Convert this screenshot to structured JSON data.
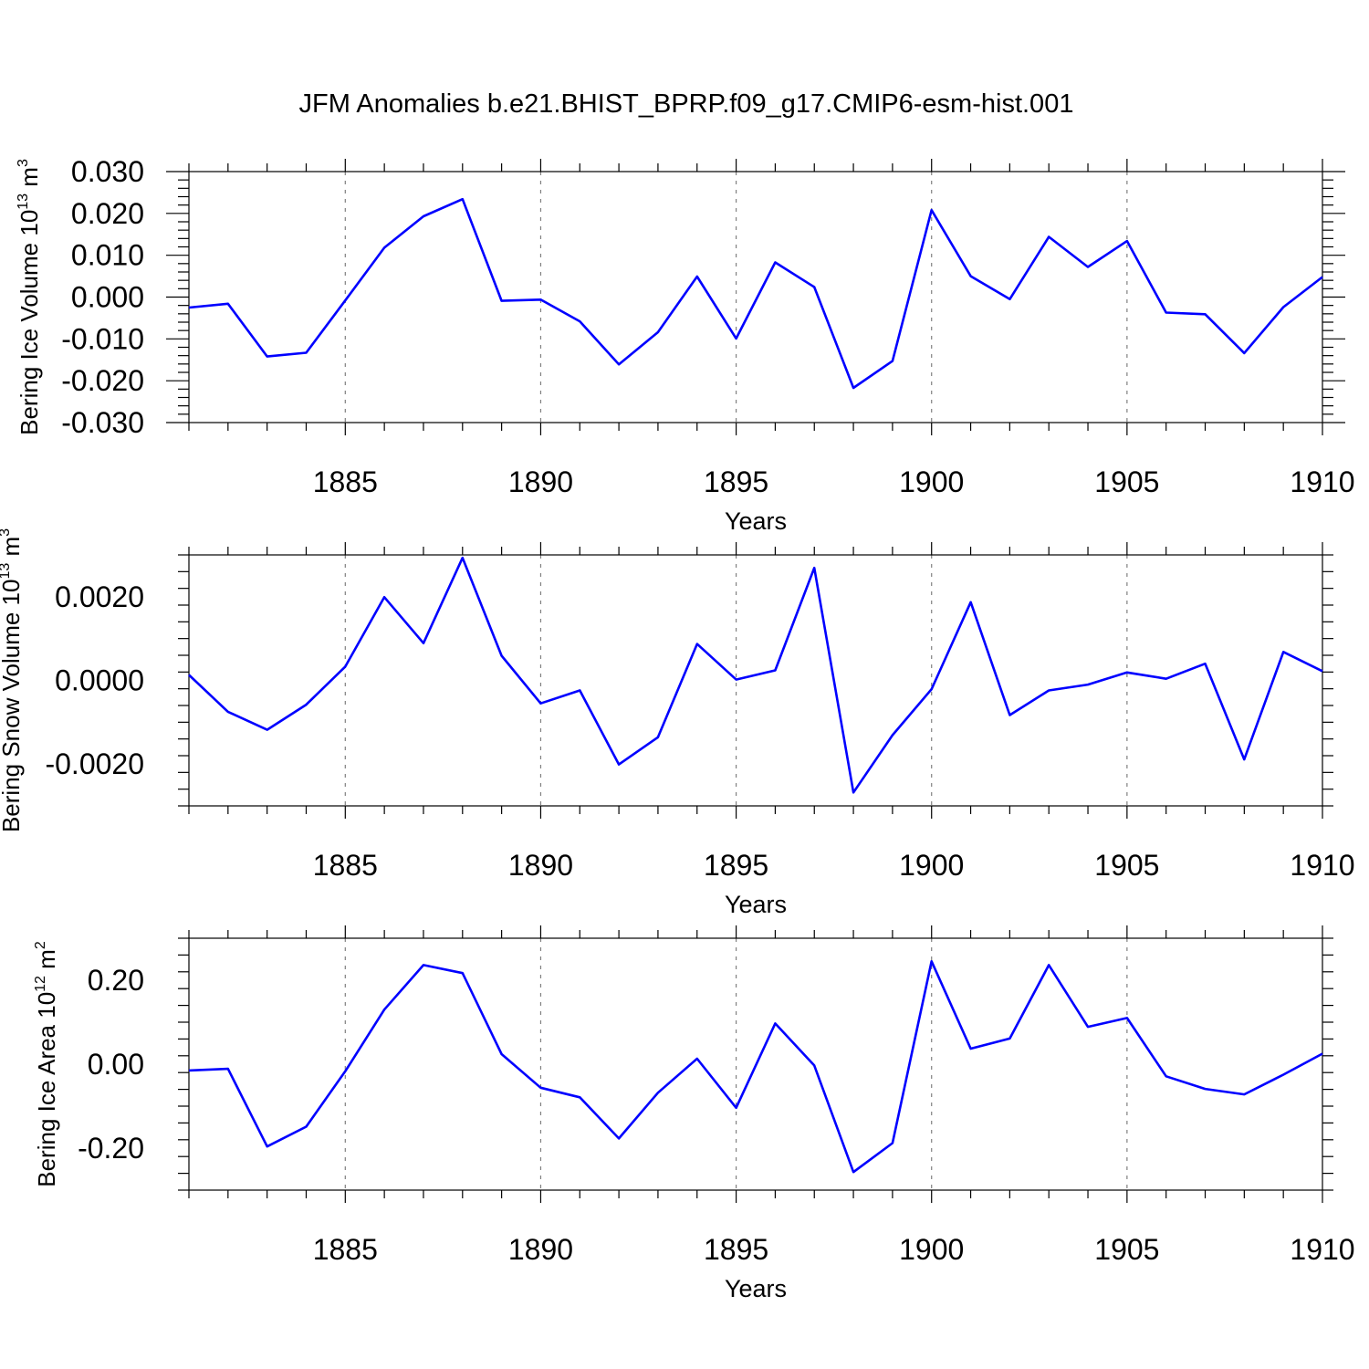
{
  "title": "JFM Anomalies b.e21.BHIST_BPRP.f09_g17.CMIP6-esm-hist.001",
  "colors": {
    "series": "#0000ff",
    "axes": "#000000",
    "grid": "#808080"
  },
  "chart_data": [
    {
      "type": "line",
      "title": "JFM Anomalies b.e21.BHIST_BPRP.f09_g17.CMIP6-esm-hist.001",
      "xlabel": "Years",
      "ylabel": {
        "base": "Bering Ice Volume 10",
        "exp": "13",
        "unit": " m",
        "unit_exp": "3"
      },
      "xlim": [
        1881,
        1910
      ],
      "ylim": [
        -0.03,
        0.03
      ],
      "x_ticks": [
        1885,
        1890,
        1895,
        1900,
        1905,
        1910
      ],
      "y_ticks": [
        -0.03,
        -0.02,
        -0.01,
        0.0,
        0.01,
        0.02,
        0.03
      ],
      "y_tick_labels": [
        "-0.030",
        "-0.020",
        "-0.010",
        "0.000",
        "0.010",
        "0.020",
        "0.030"
      ],
      "grid": "vertical dashed at major x ticks",
      "x": [
        1881,
        1882,
        1883,
        1884,
        1885,
        1886,
        1887,
        1888,
        1889,
        1890,
        1891,
        1892,
        1893,
        1894,
        1895,
        1896,
        1897,
        1898,
        1899,
        1900,
        1901,
        1902,
        1903,
        1904,
        1905,
        1906,
        1907,
        1908,
        1909,
        1910
      ],
      "values": [
        -0.0025,
        -0.0016,
        -0.0142,
        -0.0133,
        -0.0008,
        0.0118,
        0.0193,
        0.0234,
        -0.0009,
        -0.0006,
        -0.0058,
        -0.0161,
        -0.0084,
        0.0049,
        -0.0099,
        0.0083,
        0.0024,
        -0.0217,
        -0.0153,
        0.0208,
        0.005,
        -0.0005,
        0.0144,
        0.0072,
        0.0134,
        -0.0037,
        -0.0041,
        -0.0134,
        -0.0024,
        0.0048
      ]
    },
    {
      "type": "line",
      "xlabel": "Years",
      "ylabel": {
        "base": "Bering Snow Volume 10",
        "exp": "13",
        "unit": " m",
        "unit_exp": "3"
      },
      "xlim": [
        1881,
        1910
      ],
      "ylim": [
        -0.003,
        0.003
      ],
      "x_ticks": [
        1885,
        1890,
        1895,
        1900,
        1905,
        1910
      ],
      "y_ticks": [
        -0.002,
        0.0,
        0.002
      ],
      "y_tick_labels": [
        "-0.0020",
        "0.0000",
        "0.0020"
      ],
      "grid": "vertical dashed at major x ticks",
      "x": [
        1881,
        1882,
        1883,
        1884,
        1885,
        1886,
        1887,
        1888,
        1889,
        1890,
        1891,
        1892,
        1893,
        1894,
        1895,
        1896,
        1897,
        1898,
        1899,
        1900,
        1901,
        1902,
        1903,
        1904,
        1905,
        1906,
        1907,
        1908,
        1909,
        1910
      ],
      "values": [
        0.00013,
        -0.00075,
        -0.00118,
        -0.00058,
        0.00033,
        0.00199,
        0.00089,
        0.00293,
        0.00059,
        -0.00055,
        -0.00024,
        -0.00201,
        -0.00136,
        0.00087,
        2e-05,
        0.00024,
        0.00269,
        -0.00268,
        -0.00131,
        -0.00021,
        0.00187,
        -0.00083,
        -0.00024,
        -0.0001,
        0.00019,
        4e-05,
        0.0004,
        -0.00189,
        0.00068,
        0.00022
      ]
    },
    {
      "type": "line",
      "xlabel": "Years",
      "ylabel": {
        "base": "Bering Ice Area 10",
        "exp": "12",
        "unit": " m",
        "unit_exp": "2"
      },
      "xlim": [
        1881,
        1910
      ],
      "ylim": [
        -0.3,
        0.3
      ],
      "x_ticks": [
        1885,
        1890,
        1895,
        1900,
        1905,
        1910
      ],
      "y_ticks": [
        -0.2,
        0.0,
        0.2
      ],
      "y_tick_labels": [
        "-0.20",
        "0.00",
        "0.20"
      ],
      "grid": "vertical dashed at major x ticks",
      "x": [
        1881,
        1882,
        1883,
        1884,
        1885,
        1886,
        1887,
        1888,
        1889,
        1890,
        1891,
        1892,
        1893,
        1894,
        1895,
        1896,
        1897,
        1898,
        1899,
        1900,
        1901,
        1902,
        1903,
        1904,
        1905,
        1906,
        1907,
        1908,
        1909,
        1910
      ],
      "values": [
        -0.015,
        -0.011,
        -0.196,
        -0.149,
        -0.017,
        0.13,
        0.236,
        0.217,
        0.024,
        -0.056,
        -0.079,
        -0.177,
        -0.068,
        0.013,
        -0.104,
        0.097,
        -0.003,
        -0.257,
        -0.188,
        0.245,
        0.037,
        0.061,
        0.236,
        0.089,
        0.11,
        -0.029,
        -0.059,
        -0.072,
        -0.025,
        0.025
      ]
    }
  ]
}
